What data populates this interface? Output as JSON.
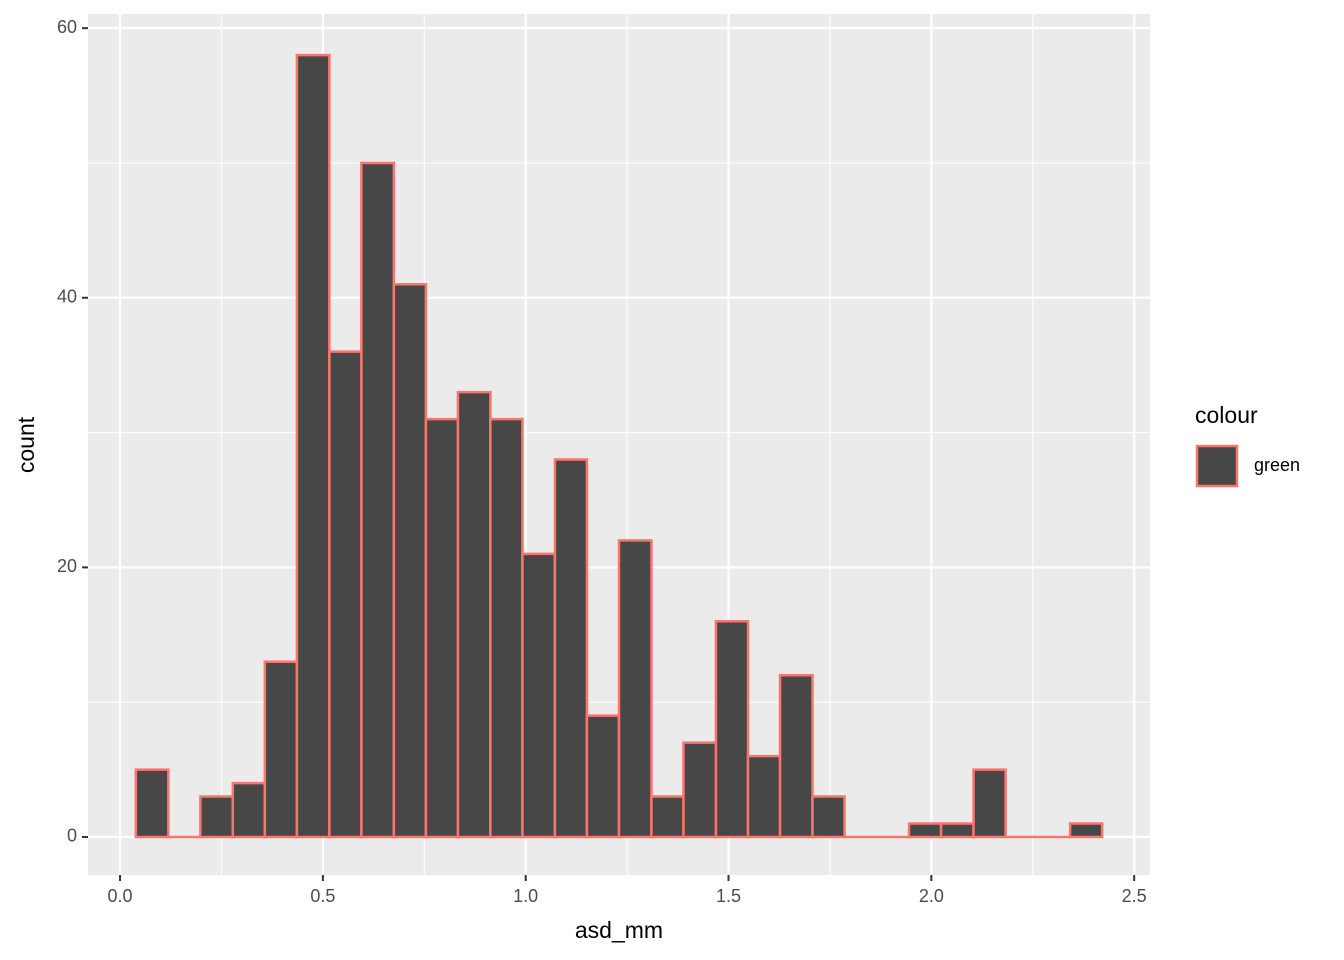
{
  "chart_data": {
    "type": "histogram",
    "x_label": "asd_mm",
    "y_label": "count",
    "bins": [
      0.039,
      0.119,
      0.198,
      0.278,
      0.357,
      0.436,
      0.516,
      0.595,
      0.675,
      0.754,
      0.833,
      0.913,
      0.992,
      1.072,
      1.151,
      1.23,
      1.31,
      1.389,
      1.469,
      1.548,
      1.627,
      1.707,
      1.786,
      1.866,
      1.945,
      2.024,
      2.104,
      2.183,
      2.263,
      2.342,
      2.421
    ],
    "series": [
      {
        "name": "green",
        "color": "#F8766D",
        "fill": "#474747",
        "values": [
          5,
          0,
          3,
          4,
          13,
          58,
          36,
          50,
          41,
          31,
          33,
          31,
          21,
          28,
          9,
          22,
          3,
          7,
          16,
          6,
          12,
          3,
          0,
          0,
          1,
          1,
          5,
          0,
          0,
          1
        ]
      }
    ],
    "legend_title": "colour",
    "xlim": [
      -0.079,
      2.539
    ],
    "xticks": [
      {
        "value": 0,
        "label": "0.0"
      },
      {
        "value": 0.5,
        "label": "0.5"
      },
      {
        "value": 1,
        "label": "1.0"
      },
      {
        "value": 1.5,
        "label": "1.5"
      },
      {
        "value": 2,
        "label": "2.0"
      },
      {
        "value": 2.5,
        "label": "2.5"
      }
    ],
    "ylim": [
      -2.82,
      61.05
    ],
    "yticks": [
      0,
      20,
      40,
      60
    ],
    "grid": true
  }
}
